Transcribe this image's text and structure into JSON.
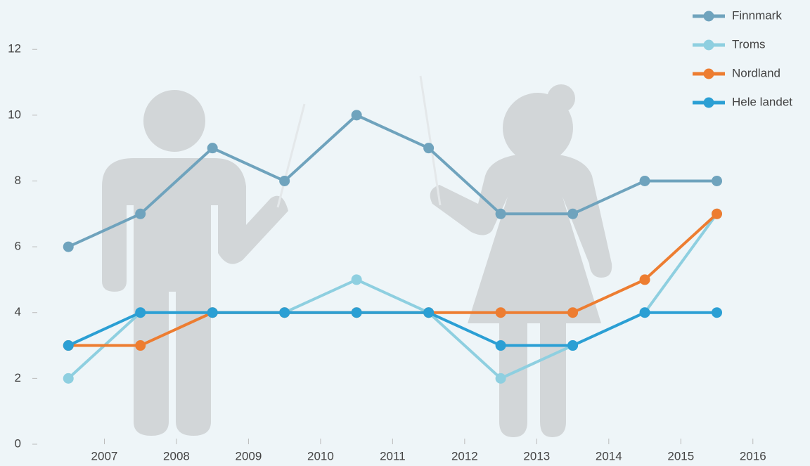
{
  "chart_data": {
    "type": "line",
    "x": [
      2006.5,
      2007.5,
      2008.5,
      2009.5,
      2010.5,
      2011.5,
      2012.5,
      2013.5,
      2014.5,
      2015.5
    ],
    "xlim": [
      2006,
      2016.5
    ],
    "xticks": [
      2007,
      2008,
      2009,
      2010,
      2011,
      2012,
      2013,
      2014,
      2015,
      2016
    ],
    "ylim": [
      0,
      13.5
    ],
    "yticks": [
      0,
      2,
      4,
      6,
      8,
      10,
      12
    ],
    "legend": "top-right",
    "series": [
      {
        "name": "Finnmark",
        "color": "#6fa3bd",
        "values": [
          6,
          7,
          9,
          8,
          10,
          9,
          7,
          7,
          8,
          8
        ]
      },
      {
        "name": "Troms",
        "color": "#8ecfe0",
        "values": [
          2,
          4,
          4,
          4,
          5,
          4,
          2,
          3,
          4,
          7
        ]
      },
      {
        "name": "Nordland",
        "color": "#ed7d31",
        "values": [
          3,
          3,
          4,
          4,
          4,
          4,
          4,
          4,
          5,
          7
        ]
      },
      {
        "name": "Hele landet",
        "color": "#2b9fd4",
        "values": [
          3,
          4,
          4,
          4,
          4,
          4,
          3,
          3,
          4,
          4
        ]
      }
    ]
  }
}
